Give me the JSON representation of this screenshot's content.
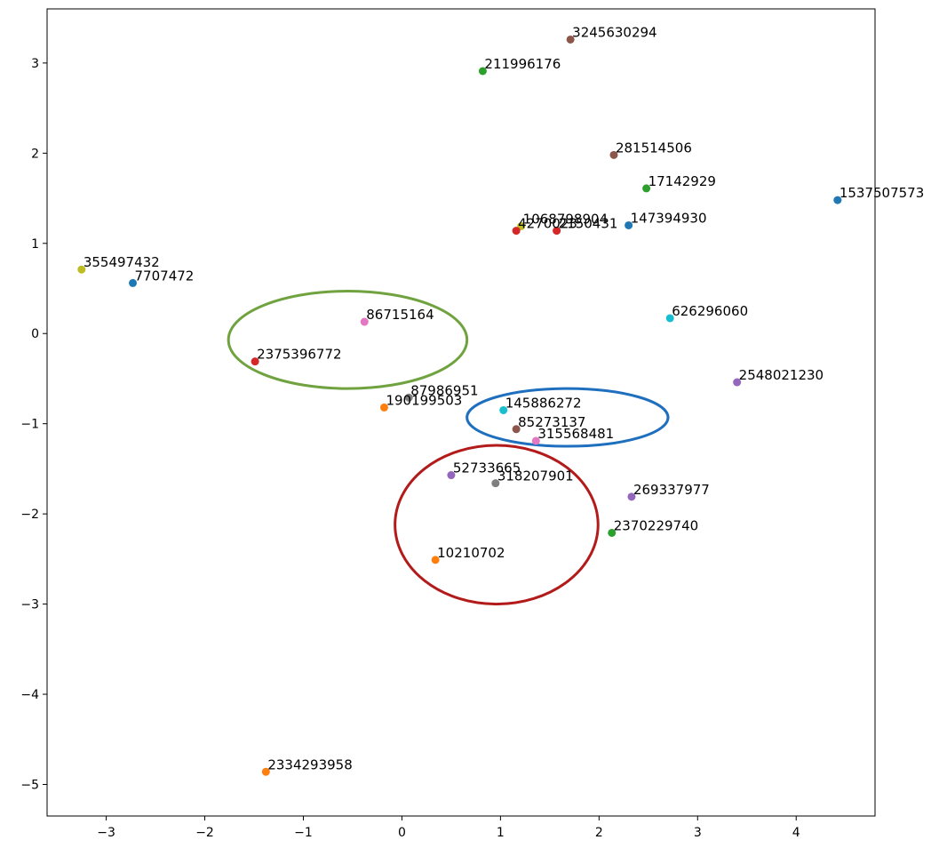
{
  "chart_data": {
    "type": "scatter",
    "title": "",
    "xlabel": "",
    "ylabel": "",
    "xlim": [
      -3.6,
      4.8
    ],
    "ylim": [
      -5.35,
      3.6
    ],
    "xticks": [
      -3,
      -2,
      -1,
      0,
      1,
      2,
      3,
      4
    ],
    "yticks": [
      -5,
      -4,
      -3,
      -2,
      -1,
      0,
      1,
      2,
      3
    ],
    "grid": false,
    "points": [
      {
        "label": "3245630294",
        "x": 1.71,
        "y": 3.26,
        "color": "#8c564b"
      },
      {
        "label": "211996176",
        "x": 0.82,
        "y": 2.91,
        "color": "#2ca02c"
      },
      {
        "label": "281514506",
        "x": 2.15,
        "y": 1.98,
        "color": "#8c564b"
      },
      {
        "label": "17142929",
        "x": 2.48,
        "y": 1.61,
        "color": "#2ca02c"
      },
      {
        "label": "1537507573",
        "x": 4.42,
        "y": 1.48,
        "color": "#1f77b4"
      },
      {
        "label": "1068798904",
        "x": 1.21,
        "y": 1.19,
        "color": "#bcbd22"
      },
      {
        "label": "4270023",
        "x": 1.16,
        "y": 1.14,
        "color": "#d62728"
      },
      {
        "label": "2150431",
        "x": 1.57,
        "y": 1.14,
        "color": "#d62728"
      },
      {
        "label": "147394930",
        "x": 2.3,
        "y": 1.2,
        "color": "#1f77b4"
      },
      {
        "label": "355497432",
        "x": -3.25,
        "y": 0.71,
        "color": "#bcbd22"
      },
      {
        "label": "7707472",
        "x": -2.73,
        "y": 0.56,
        "color": "#1f77b4"
      },
      {
        "label": "86715164",
        "x": -0.38,
        "y": 0.13,
        "color": "#e377c2"
      },
      {
        "label": "626296060",
        "x": 2.72,
        "y": 0.17,
        "color": "#17becf"
      },
      {
        "label": "2375396772",
        "x": -1.49,
        "y": -0.31,
        "color": "#d62728"
      },
      {
        "label": "2548021230",
        "x": 3.4,
        "y": -0.54,
        "color": "#9467bd"
      },
      {
        "label": "87986951",
        "x": 0.07,
        "y": -0.71,
        "color": "#7f7f7f"
      },
      {
        "label": "190199503",
        "x": -0.18,
        "y": -0.82,
        "color": "#ff7f0e"
      },
      {
        "label": "145886272",
        "x": 1.03,
        "y": -0.85,
        "color": "#17becf"
      },
      {
        "label": "85273137",
        "x": 1.16,
        "y": -1.06,
        "color": "#8c564b"
      },
      {
        "label": "315568481",
        "x": 1.36,
        "y": -1.19,
        "color": "#e377c2"
      },
      {
        "label": "52733665",
        "x": 0.5,
        "y": -1.57,
        "color": "#9467bd"
      },
      {
        "label": "318207901",
        "x": 0.95,
        "y": -1.66,
        "color": "#7f7f7f"
      },
      {
        "label": "269337977",
        "x": 2.33,
        "y": -1.81,
        "color": "#9467bd"
      },
      {
        "label": "2370229740",
        "x": 2.13,
        "y": -2.21,
        "color": "#2ca02c"
      },
      {
        "label": "10210702",
        "x": 0.34,
        "y": -2.51,
        "color": "#ff7f0e"
      },
      {
        "label": "2334293958",
        "x": -1.38,
        "y": -4.86,
        "color": "#ff7f0e"
      }
    ],
    "annotations": [
      {
        "shape": "ellipse",
        "color": "#70a340",
        "cx": -0.55,
        "cy": -0.07,
        "rx": 1.21,
        "ry": 0.54
      },
      {
        "shape": "ellipse",
        "color": "#1f6fbf",
        "cx": 1.68,
        "cy": -0.93,
        "rx": 1.02,
        "ry": 0.32
      },
      {
        "shape": "ellipse",
        "color": "#b31b1b",
        "cx": 0.96,
        "cy": -2.12,
        "rx": 1.03,
        "ry": 0.88
      }
    ]
  }
}
